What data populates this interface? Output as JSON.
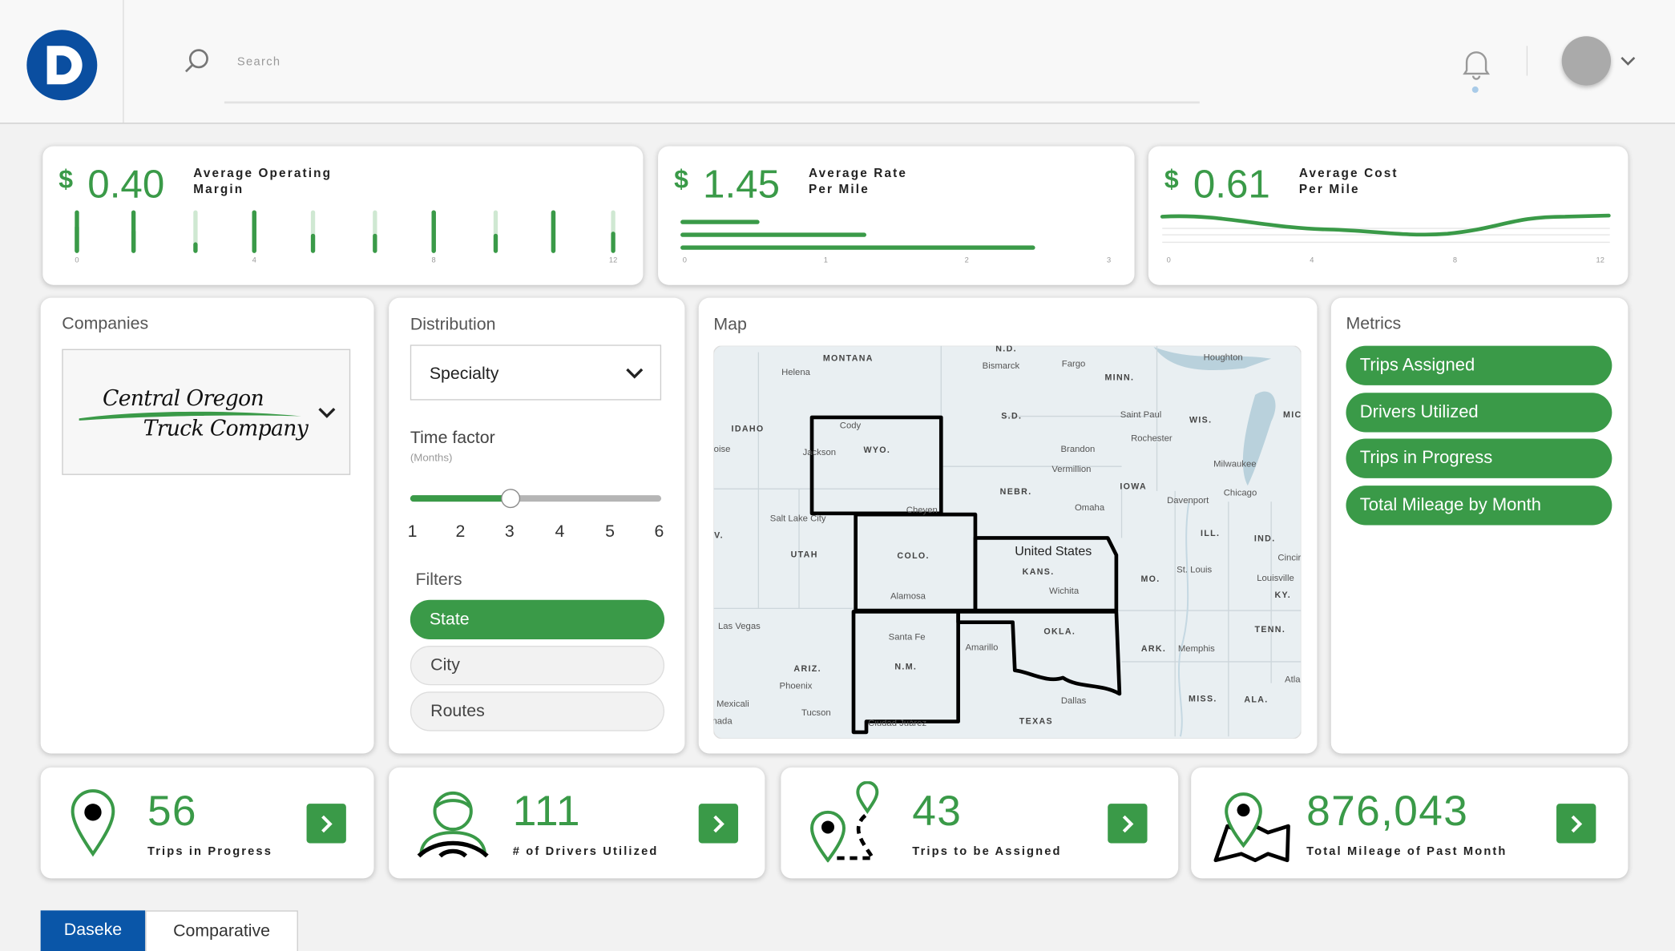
{
  "header": {
    "search_placeholder": "Search"
  },
  "kpis": [
    {
      "currency": "$",
      "value": "0.40",
      "label_lines": [
        "Average Operating",
        "Margin"
      ],
      "ticks": [
        0,
        4,
        8,
        12
      ]
    },
    {
      "currency": "$",
      "value": "1.45",
      "label_lines": [
        "Average Rate",
        "Per Mile"
      ],
      "ticks": [
        0,
        1,
        2,
        3
      ]
    },
    {
      "currency": "$",
      "value": "0.61",
      "label_lines": [
        "Average Cost",
        "Per Mile"
      ],
      "ticks": [
        0,
        4,
        8,
        12
      ]
    }
  ],
  "companies": {
    "title": "Companies",
    "selected_lines": [
      "Central Oregon",
      "Truck Company"
    ]
  },
  "distribution": {
    "title": "Distribution",
    "selected": "Specialty",
    "time_factor_title": "Time factor",
    "time_factor_unit": "(Months)",
    "time_factor_options": [
      1,
      2,
      3,
      4,
      5,
      6
    ],
    "filters_title": "Filters",
    "filters": [
      "State",
      "City",
      "Routes"
    ]
  },
  "map": {
    "title": "Map",
    "labels": [
      "MONTANA",
      "Helena",
      "N.D.",
      "Bismarck",
      "Fargo",
      "MINN.",
      "Houghton",
      "MIC",
      "IDAHO",
      "Cody",
      "WYO.",
      "Jackson",
      "S.D.",
      "Saint Paul",
      "WIS.",
      "Rochester",
      "Brandon",
      "Vermillion",
      "Milwaukee",
      "oise",
      "NEBR.",
      "IOWA",
      "Chicago",
      "Omaha",
      "Davenport",
      "Cheyen",
      "Salt Lake City",
      "UTAH",
      "V.",
      "ILL.",
      "IND.",
      "United States",
      "COLO.",
      "KANS.",
      "Cincir",
      "St. Louis",
      "MO.",
      "Louisville",
      "Wichita",
      "Alamosa",
      "KY.",
      "Las Vegas",
      "OKLA.",
      "TENN.",
      "Santa Fe",
      "Amarillo",
      "ARK.",
      "Memphis",
      "ARIZ.",
      "N.M.",
      "Atla",
      "Phoenix",
      "Dallas",
      "MISS.",
      "ALA.",
      "Mexicali",
      "Tucson",
      "TEXAS",
      "Ciudad Juárez",
      "nada"
    ]
  },
  "metrics": {
    "title": "Metrics",
    "items": [
      "Trips Assigned",
      "Drivers Utilized",
      "Trips in Progress",
      "Total Mileage by Month"
    ]
  },
  "stats": [
    {
      "value": 56,
      "label": "Trips in Progress"
    },
    {
      "value": 111,
      "label": "# of Drivers Utilized"
    },
    {
      "value": 43,
      "label": "Trips to be Assigned"
    },
    {
      "value": "876,043",
      "label": "Total Mileage of Past Month"
    }
  ],
  "tabs": [
    "Daseke",
    "Comparative"
  ]
}
